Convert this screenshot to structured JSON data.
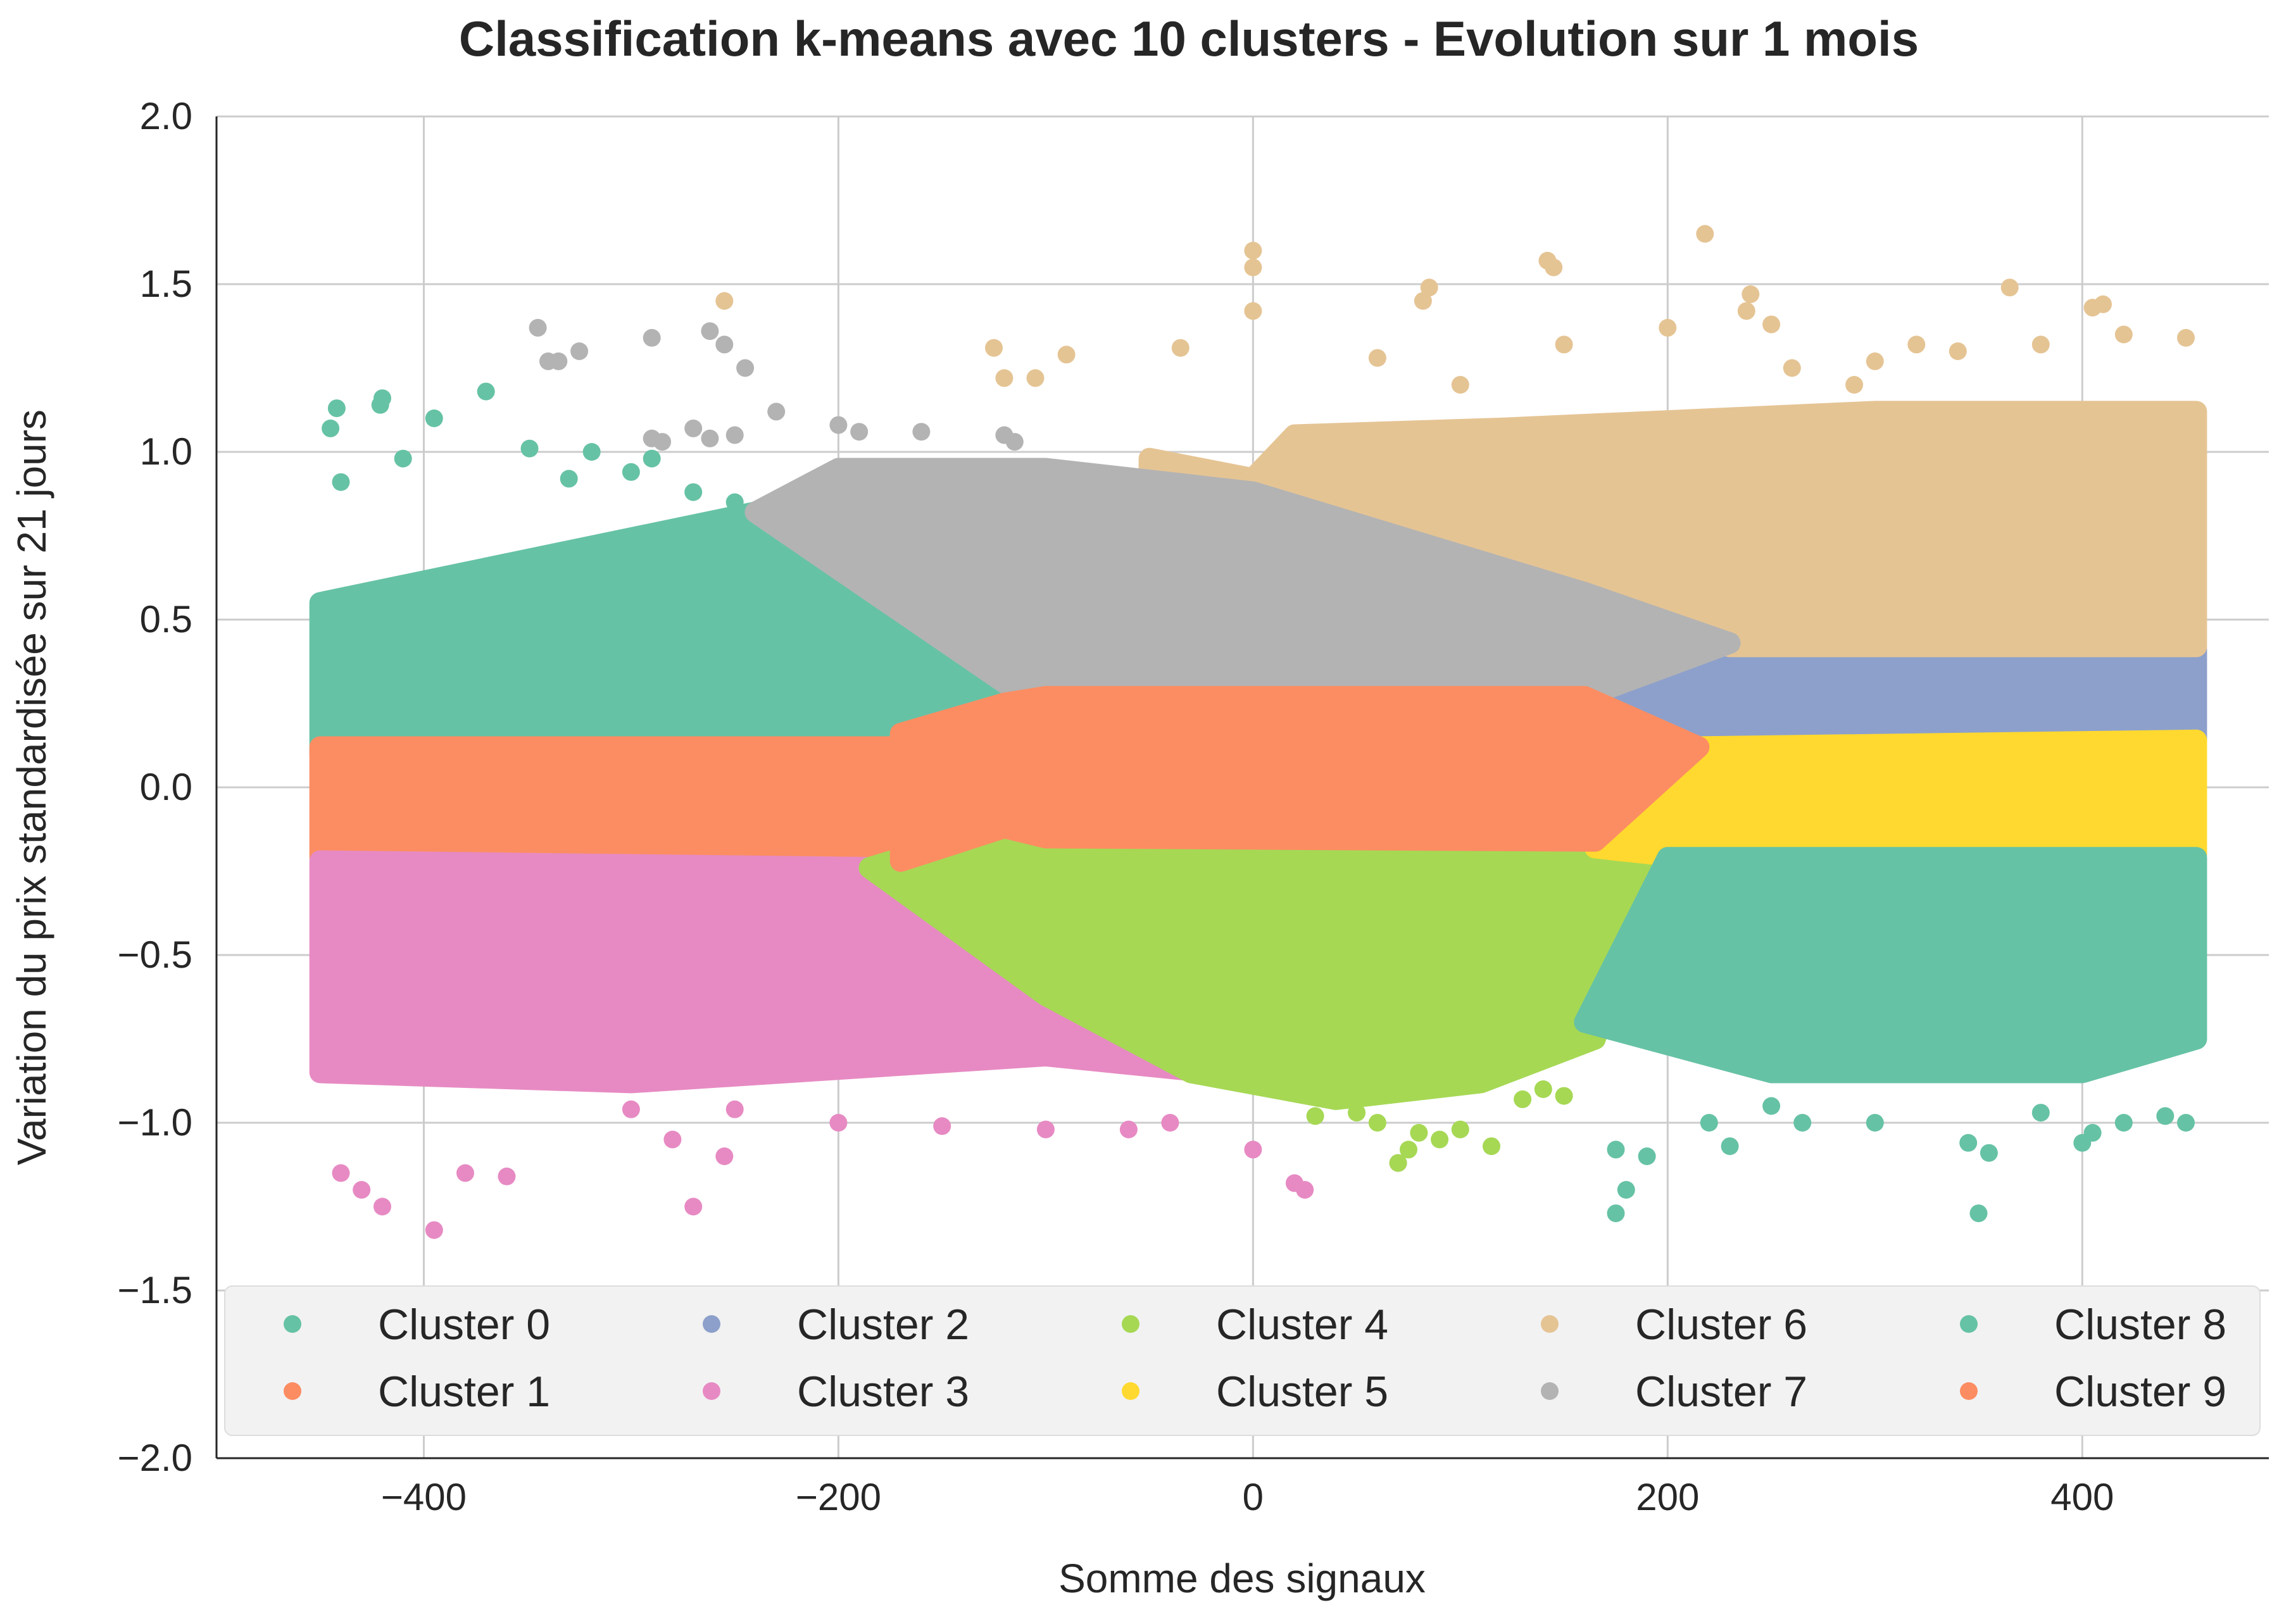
{
  "chart_data": {
    "type": "scatter",
    "title": "Classification k-means avec 10 clusters - Evolution sur 1 mois",
    "xlabel": "Somme des signaux",
    "ylabel": "Variation du prix standardisée sur 21 jours",
    "xlim": [
      -500,
      490
    ],
    "ylim": [
      -2.0,
      2.0
    ],
    "xticks": [
      -400,
      -200,
      0,
      200,
      400
    ],
    "xtick_labels": [
      "−400",
      "−200",
      "0",
      "200",
      "400"
    ],
    "yticks": [
      2.0,
      1.5,
      1.0,
      0.5,
      0.0,
      -0.5,
      -1.0,
      -1.5,
      -2.0
    ],
    "ytick_labels": [
      "2.0",
      "1.5",
      "1.0",
      "0.5",
      "0.0",
      "−0.5",
      "−1.0",
      "−1.5",
      "−2.0"
    ],
    "grid": true,
    "legend_position": "bottom, inside plot, 5 columns",
    "series": [
      {
        "name": "Cluster 0",
        "color": "#66c2a5",
        "region": [
          [
            -450,
            0.1
          ],
          [
            -450,
            0.55
          ],
          [
            -240,
            0.82
          ],
          [
            -110,
            0.27
          ],
          [
            -190,
            0.12
          ]
        ],
        "scatter_points": [
          [
            -442,
            1.13
          ],
          [
            -420,
            1.16
          ],
          [
            -421,
            1.14
          ],
          [
            -370,
            1.18
          ],
          [
            -395,
            1.1
          ],
          [
            -445,
            1.07
          ],
          [
            -440,
            0.91
          ],
          [
            -410,
            0.98
          ],
          [
            -349,
            1.01
          ],
          [
            -319,
            1.0
          ],
          [
            -300,
            0.94
          ],
          [
            -290,
            0.98
          ],
          [
            -270,
            0.88
          ],
          [
            -250,
            0.85
          ],
          [
            -330,
            0.92
          ]
        ]
      },
      {
        "name": "Cluster 1",
        "color": "#fc8d62",
        "region": [
          [
            -450,
            -0.21
          ],
          [
            -450,
            0.12
          ],
          [
            -170,
            0.12
          ],
          [
            -170,
            -0.21
          ]
        ]
      },
      {
        "name": "Cluster 2",
        "color": "#8da0cb",
        "region": [
          [
            165,
            0.22
          ],
          [
            235,
            0.41
          ],
          [
            455,
            0.41
          ],
          [
            455,
            0.14
          ],
          [
            200,
            0.14
          ]
        ]
      },
      {
        "name": "Cluster 3",
        "color": "#e78ac3",
        "region": [
          [
            -450,
            -0.22
          ],
          [
            -450,
            -0.85
          ],
          [
            -300,
            -0.88
          ],
          [
            -100,
            -0.8
          ],
          [
            -20,
            -0.85
          ],
          [
            -100,
            -0.62
          ],
          [
            -180,
            -0.24
          ]
        ],
        "scatter_points": [
          [
            -440,
            -1.15
          ],
          [
            -430,
            -1.2
          ],
          [
            -420,
            -1.25
          ],
          [
            -395,
            -1.32
          ],
          [
            -380,
            -1.15
          ],
          [
            -360,
            -1.16
          ],
          [
            -280,
            -1.05
          ],
          [
            -270,
            -1.25
          ],
          [
            -255,
            -1.1
          ],
          [
            -200,
            -1.0
          ],
          [
            -150,
            -1.01
          ],
          [
            -100,
            -1.02
          ],
          [
            -60,
            -1.02
          ],
          [
            -40,
            -1.0
          ],
          [
            20,
            -1.18
          ],
          [
            25,
            -1.2
          ],
          [
            70,
            -1.12
          ],
          [
            0,
            -1.08
          ],
          [
            -300,
            -0.96
          ],
          [
            -250,
            -0.96
          ]
        ]
      },
      {
        "name": "Cluster 4",
        "color": "#a6d854",
        "region": [
          [
            -185,
            -0.24
          ],
          [
            -120,
            -0.12
          ],
          [
            -100,
            -0.15
          ],
          [
            165,
            -0.16
          ],
          [
            195,
            -0.2
          ],
          [
            165,
            -0.75
          ],
          [
            110,
            -0.88
          ],
          [
            40,
            -0.93
          ],
          [
            -30,
            -0.85
          ],
          [
            -100,
            -0.62
          ]
        ],
        "scatter_points": [
          [
            70,
            -1.12
          ],
          [
            75,
            -1.08
          ],
          [
            80,
            -1.03
          ],
          [
            90,
            -1.05
          ],
          [
            100,
            -1.02
          ],
          [
            115,
            -1.07
          ],
          [
            60,
            -1.0
          ],
          [
            50,
            -0.97
          ],
          [
            30,
            -0.98
          ],
          [
            130,
            -0.93
          ],
          [
            140,
            -0.9
          ],
          [
            150,
            -0.92
          ]
        ]
      },
      {
        "name": "Cluster 5",
        "color": "#ffd92f",
        "region": [
          [
            165,
            -0.18
          ],
          [
            215,
            0.12
          ],
          [
            455,
            0.14
          ],
          [
            455,
            -0.2
          ],
          [
            195,
            -0.2
          ]
        ]
      },
      {
        "name": "Cluster 6",
        "color": "#e5c494",
        "region": [
          [
            -50,
            0.98
          ],
          [
            0,
            0.92
          ],
          [
            20,
            1.05
          ],
          [
            120,
            1.07
          ],
          [
            300,
            1.12
          ],
          [
            455,
            1.12
          ],
          [
            455,
            0.42
          ],
          [
            230,
            0.42
          ],
          [
            160,
            0.53
          ],
          [
            0,
            0.9
          ],
          [
            -50,
            0.94
          ]
        ],
        "scatter_points": [
          [
            -255,
            1.45
          ],
          [
            -125,
            1.31
          ],
          [
            -120,
            1.22
          ],
          [
            -105,
            1.22
          ],
          [
            -90,
            1.29
          ],
          [
            -35,
            1.31
          ],
          [
            0,
            1.6
          ],
          [
            0,
            1.55
          ],
          [
            0,
            1.42
          ],
          [
            85,
            1.49
          ],
          [
            82,
            1.45
          ],
          [
            142,
            1.57
          ],
          [
            145,
            1.55
          ],
          [
            218,
            1.65
          ],
          [
            240,
            1.47
          ],
          [
            238,
            1.42
          ],
          [
            365,
            1.49
          ],
          [
            405,
            1.43
          ],
          [
            410,
            1.44
          ],
          [
            300,
            1.27
          ],
          [
            250,
            1.38
          ],
          [
            200,
            1.37
          ],
          [
            320,
            1.32
          ],
          [
            340,
            1.3
          ],
          [
            260,
            1.25
          ],
          [
            290,
            1.2
          ],
          [
            380,
            1.32
          ],
          [
            420,
            1.35
          ],
          [
            450,
            1.34
          ],
          [
            100,
            1.2
          ],
          [
            150,
            1.32
          ],
          [
            60,
            1.28
          ]
        ]
      },
      {
        "name": "Cluster 7",
        "color": "#b3b3b3",
        "region": [
          [
            -240,
            0.82
          ],
          [
            -200,
            0.95
          ],
          [
            -100,
            0.95
          ],
          [
            0,
            0.88
          ],
          [
            160,
            0.58
          ],
          [
            230,
            0.43
          ],
          [
            160,
            0.27
          ],
          [
            -110,
            0.27
          ]
        ],
        "scatter_points": [
          [
            -345,
            1.37
          ],
          [
            -335,
            1.27
          ],
          [
            -340,
            1.27
          ],
          [
            -325,
            1.3
          ],
          [
            -290,
            1.34
          ],
          [
            -262,
            1.36
          ],
          [
            -255,
            1.32
          ],
          [
            -245,
            1.25
          ],
          [
            -290,
            1.04
          ],
          [
            -285,
            1.03
          ],
          [
            -270,
            1.07
          ],
          [
            -262,
            1.04
          ],
          [
            -230,
            1.12
          ],
          [
            -250,
            1.05
          ],
          [
            -200,
            1.08
          ],
          [
            -190,
            1.06
          ],
          [
            -160,
            1.06
          ],
          [
            -120,
            1.05
          ],
          [
            -115,
            1.03
          ]
        ]
      },
      {
        "name": "Cluster 8",
        "color": "#66c2a5",
        "region": [
          [
            160,
            -0.7
          ],
          [
            200,
            -0.21
          ],
          [
            455,
            -0.21
          ],
          [
            455,
            -0.75
          ],
          [
            400,
            -0.85
          ],
          [
            250,
            -0.85
          ]
        ],
        "scatter_points": [
          [
            175,
            -1.27
          ],
          [
            180,
            -1.2
          ],
          [
            175,
            -1.08
          ],
          [
            190,
            -1.1
          ],
          [
            220,
            -1.0
          ],
          [
            230,
            -1.07
          ],
          [
            250,
            -0.95
          ],
          [
            265,
            -1.0
          ],
          [
            300,
            -1.0
          ],
          [
            350,
            -1.27
          ],
          [
            355,
            -1.09
          ],
          [
            345,
            -1.06
          ],
          [
            400,
            -1.06
          ],
          [
            405,
            -1.03
          ],
          [
            420,
            -1.0
          ],
          [
            440,
            -0.98
          ],
          [
            450,
            -1.0
          ],
          [
            380,
            -0.97
          ]
        ]
      },
      {
        "name": "Cluster 9",
        "color": "#fc8d62",
        "region": [
          [
            -170,
            0.12
          ],
          [
            -170,
            0.16
          ],
          [
            -120,
            0.25
          ],
          [
            -100,
            0.27
          ],
          [
            160,
            0.27
          ],
          [
            215,
            0.12
          ],
          [
            165,
            -0.16
          ],
          [
            -100,
            -0.15
          ],
          [
            -120,
            -0.12
          ],
          [
            -170,
            -0.22
          ]
        ]
      }
    ]
  }
}
